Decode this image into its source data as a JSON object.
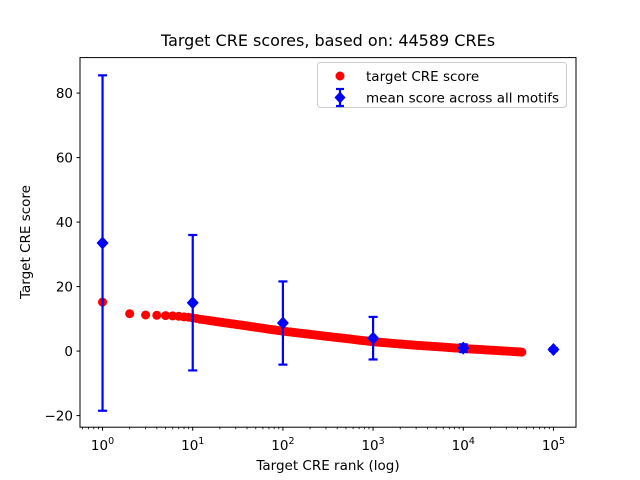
{
  "figure": {
    "background": "#ffffff"
  },
  "chart_data": {
    "type": "scatter",
    "title": "Target CRE scores, based on: 44589 CREs",
    "xlabel": "Target CRE rank (log)",
    "ylabel": "Target CRE score",
    "xscale": "log",
    "grid": false,
    "xlim_log10": [
      -0.25,
      5.25
    ],
    "ylim": [
      -23.6,
      91.0
    ],
    "yticks": [
      -20,
      0,
      20,
      40,
      60,
      80
    ],
    "xtick_exponents": [
      0,
      1,
      2,
      3,
      4,
      5
    ],
    "axis_color": "#000000",
    "legend": {
      "position": "upper right",
      "border_color": "#cccccc",
      "background": "#ffffff"
    },
    "series": [
      {
        "name": "target CRE score",
        "type": "scatter",
        "marker": "circle",
        "color": "#ff0000",
        "marker_px": 9,
        "max_rank": 44589,
        "points": [
          [
            1,
            15.2
          ],
          [
            2,
            11.6
          ],
          [
            3,
            11.2
          ],
          [
            4,
            11.1
          ],
          [
            5,
            11.0
          ],
          [
            6,
            10.9
          ],
          [
            7,
            10.8
          ],
          [
            8,
            10.6
          ],
          [
            9,
            10.5
          ],
          [
            10,
            10.3
          ],
          [
            12,
            9.9
          ],
          [
            15,
            9.5
          ],
          [
            20,
            9.0
          ],
          [
            30,
            8.3
          ],
          [
            40,
            7.8
          ],
          [
            50,
            7.4
          ],
          [
            70,
            6.8
          ],
          [
            100,
            6.2
          ],
          [
            150,
            5.6
          ],
          [
            200,
            5.2
          ],
          [
            300,
            4.6
          ],
          [
            500,
            3.9
          ],
          [
            700,
            3.4
          ],
          [
            1000,
            2.9
          ],
          [
            1500,
            2.5
          ],
          [
            2000,
            2.2
          ],
          [
            3000,
            1.8
          ],
          [
            5000,
            1.4
          ],
          [
            7000,
            1.1
          ],
          [
            10000,
            0.8
          ],
          [
            15000,
            0.5
          ],
          [
            20000,
            0.3
          ],
          [
            30000,
            0.0
          ],
          [
            44589,
            -0.3
          ]
        ]
      },
      {
        "name": "mean score across all motifs",
        "type": "errorbar",
        "marker": "diamond",
        "color": "#0000ff",
        "x": [
          1,
          10,
          100,
          1000,
          10000,
          100000
        ],
        "mean": [
          33.5,
          15.0,
          8.7,
          4.0,
          0.9,
          0.5
        ],
        "std": [
          52.0,
          21.0,
          12.9,
          6.6,
          1.2,
          0.4
        ]
      }
    ]
  }
}
